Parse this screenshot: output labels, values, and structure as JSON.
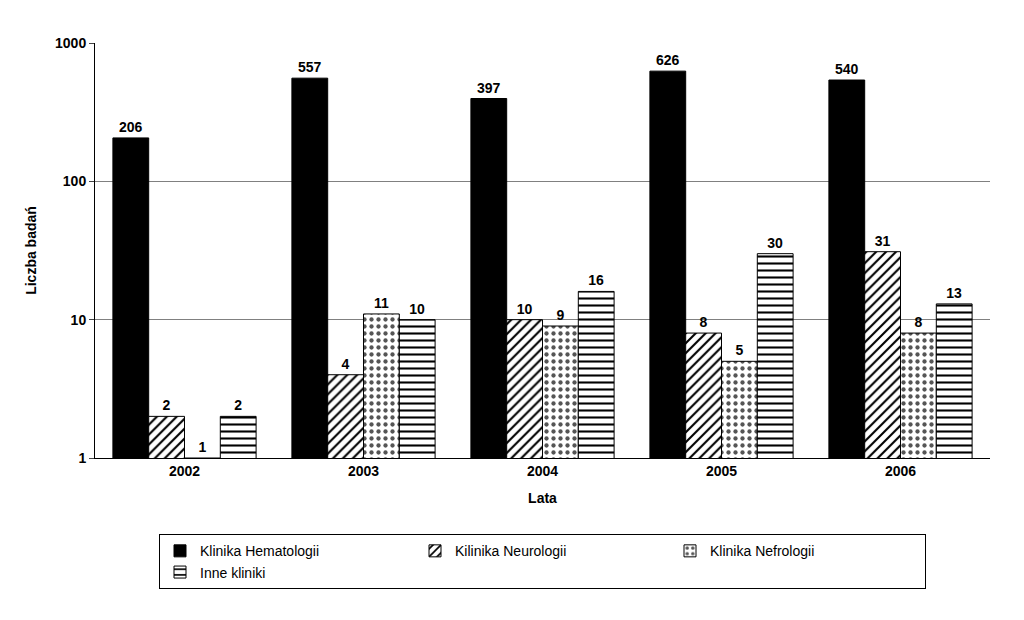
{
  "chart_data": {
    "type": "bar",
    "x_label": "Lata",
    "y_label": "Liczba badań",
    "categories": [
      "2002",
      "2003",
      "2004",
      "2005",
      "2006"
    ],
    "series": [
      {
        "name": "Klinika Hematologii",
        "color": "#000000",
        "marker": "solid",
        "values": [
          206,
          557,
          397,
          626,
          540
        ]
      },
      {
        "name": "Kilinika Neurologii",
        "color": "#000000",
        "marker": "diagonal",
        "values": [
          2,
          4,
          10,
          8,
          31
        ]
      },
      {
        "name": "Klinika Nefrologii",
        "color": "#555555",
        "marker": "dotted",
        "values": [
          1,
          11,
          9,
          5,
          8
        ]
      },
      {
        "name": "Inne kliniki",
        "color": "#000000",
        "marker": "horizontal",
        "values": [
          2,
          10,
          16,
          30,
          13
        ]
      }
    ],
    "log": "y",
    "ylim": [
      1,
      1000
    ],
    "yticks": [
      1,
      10,
      100,
      1000
    ],
    "grid": true,
    "legend": "bottom",
    "data_labels": true
  }
}
